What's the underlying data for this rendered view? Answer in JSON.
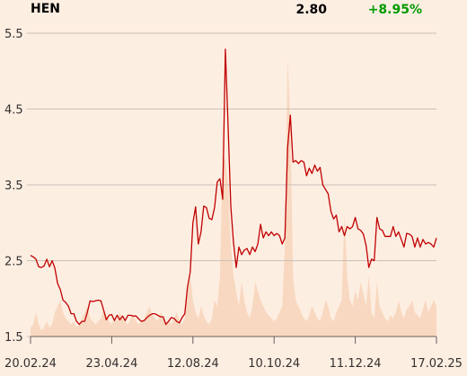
{
  "chart_data": {
    "type": "line",
    "title": "HEN",
    "price": "2.80",
    "change": "+8.95%",
    "change_color": "#009b00",
    "categories": [
      "20.02.24",
      null,
      null,
      null,
      null,
      null,
      null,
      null,
      null,
      null,
      null,
      null,
      null,
      null,
      null,
      null,
      null,
      null,
      null,
      null,
      null,
      null,
      null,
      null,
      null,
      null,
      null,
      null,
      null,
      null,
      "23.04.24",
      null,
      null,
      null,
      null,
      null,
      null,
      null,
      null,
      null,
      null,
      null,
      null,
      null,
      null,
      null,
      null,
      null,
      null,
      null,
      null,
      null,
      null,
      null,
      null,
      null,
      null,
      null,
      null,
      null,
      "12.08.24",
      null,
      null,
      null,
      null,
      null,
      null,
      null,
      null,
      null,
      null,
      null,
      null,
      null,
      null,
      null,
      null,
      null,
      null,
      null,
      null,
      null,
      null,
      null,
      null,
      null,
      null,
      null,
      null,
      null,
      "10.10.24",
      null,
      null,
      null,
      null,
      null,
      null,
      null,
      null,
      null,
      null,
      null,
      null,
      null,
      null,
      null,
      null,
      null,
      null,
      null,
      null,
      null,
      null,
      null,
      null,
      null,
      null,
      null,
      null,
      null,
      "11.12.24",
      null,
      null,
      null,
      null,
      null,
      null,
      null,
      null,
      null,
      null,
      null,
      null,
      null,
      null,
      null,
      null,
      null,
      null,
      null,
      null,
      null,
      null,
      null,
      null,
      null,
      null,
      null,
      null,
      null,
      "17.02.25"
    ],
    "series": [
      {
        "color": "#c00000",
        "values": [
          2.57,
          2.55,
          2.52,
          2.42,
          2.41,
          2.43,
          2.52,
          2.42,
          2.5,
          2.4,
          2.2,
          2.12,
          1.98,
          1.95,
          1.9,
          1.8,
          1.8,
          1.7,
          1.66,
          1.7,
          1.7,
          1.82,
          1.97,
          1.96,
          1.97,
          1.98,
          1.97,
          1.85,
          1.72,
          1.78,
          1.79,
          1.71,
          1.78,
          1.72,
          1.77,
          1.71,
          1.78,
          1.78,
          1.77,
          1.77,
          1.73,
          1.7,
          1.71,
          1.75,
          1.78,
          1.8,
          1.8,
          1.78,
          1.76,
          1.76,
          1.66,
          1.7,
          1.75,
          1.74,
          1.7,
          1.68,
          1.75,
          1.8,
          2.15,
          2.35,
          3.0,
          3.21,
          2.72,
          2.88,
          3.22,
          3.2,
          3.06,
          3.04,
          3.2,
          3.54,
          3.58,
          3.31,
          5.29,
          4.28,
          3.22,
          2.74,
          2.41,
          2.68,
          2.58,
          2.64,
          2.66,
          2.58,
          2.68,
          2.62,
          2.72,
          2.98,
          2.8,
          2.88,
          2.83,
          2.88,
          2.83,
          2.86,
          2.83,
          2.72,
          2.8,
          3.99,
          4.42,
          3.8,
          3.82,
          3.78,
          3.82,
          3.8,
          3.62,
          3.72,
          3.65,
          3.76,
          3.68,
          3.73,
          3.5,
          3.44,
          3.38,
          3.15,
          3.05,
          3.1,
          2.88,
          2.95,
          2.83,
          2.95,
          2.92,
          2.95,
          3.07,
          2.92,
          2.9,
          2.85,
          2.7,
          2.41,
          2.52,
          2.5,
          3.07,
          2.92,
          2.9,
          2.82,
          2.82,
          2.82,
          2.95,
          2.82,
          2.88,
          2.78,
          2.68,
          2.86,
          2.85,
          2.82,
          2.68,
          2.8,
          2.68,
          2.78,
          2.72,
          2.74,
          2.72,
          2.68,
          2.8
        ]
      }
    ],
    "volume": {
      "color": "#f8d8c0",
      "values": [
        3,
        4,
        8,
        4,
        2,
        3,
        5,
        3,
        4,
        8,
        10,
        12,
        8,
        6,
        5,
        4,
        5,
        3,
        4,
        6,
        8,
        10,
        6,
        5,
        4,
        5,
        6,
        9,
        7,
        5,
        4,
        6,
        5,
        8,
        6,
        5,
        4,
        6,
        7,
        5,
        4,
        5,
        6,
        8,
        10,
        7,
        6,
        5,
        8,
        6,
        4,
        5,
        4,
        6,
        8,
        5,
        4,
        6,
        14,
        20,
        12,
        8,
        6,
        10,
        7,
        5,
        4,
        6,
        12,
        10,
        20,
        60,
        58,
        50,
        30,
        20,
        15,
        10,
        18,
        12,
        8,
        6,
        10,
        18,
        15,
        12,
        10,
        8,
        7,
        6,
        5,
        6,
        8,
        10,
        30,
        92,
        70,
        20,
        12,
        10,
        8,
        6,
        5,
        7,
        10,
        8,
        6,
        5,
        8,
        12,
        10,
        6,
        5,
        8,
        10,
        12,
        40,
        20,
        12,
        10,
        15,
        12,
        18,
        14,
        10,
        20,
        8,
        6,
        18,
        10,
        8,
        6,
        5,
        7,
        6,
        8,
        12,
        8,
        6,
        9,
        10,
        12,
        8,
        7,
        6,
        9,
        12,
        8,
        10,
        12,
        10
      ]
    },
    "ylim": [
      1.5,
      5.5
    ],
    "yticks": [
      1.5,
      2.5,
      3.5,
      4.5,
      5.5
    ],
    "grid": true
  }
}
